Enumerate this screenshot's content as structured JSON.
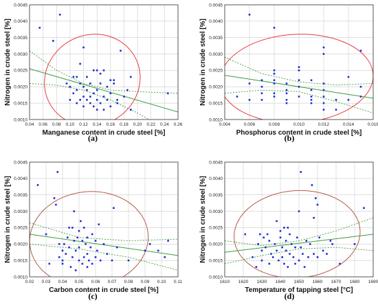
{
  "chart_data": [
    {
      "type": "scatter",
      "panel_label": "(a)",
      "xlabel": "Manganese content in crude steel [%]",
      "ylabel": "Nitrogen in crude steel [%]",
      "xlim": [
        0.04,
        0.26
      ],
      "ylim": [
        0.001,
        0.0045
      ],
      "x_ticks": [
        "0.04",
        "0.06",
        "0.08",
        "0.10",
        "0.12",
        "0.14",
        "0.16",
        "0.18",
        "0.20",
        "0.22",
        "0.24",
        "0.26"
      ],
      "y_ticks": [
        "0.0010",
        "0.0015",
        "0.0020",
        "0.0025",
        "0.0030",
        "0.0035",
        "0.0040",
        "0.0045"
      ],
      "grid": true,
      "ellipse_color": "#e8383d",
      "points": [
        [
          0.055,
          0.0038
        ],
        [
          0.075,
          0.0034
        ],
        [
          0.085,
          0.0042
        ],
        [
          0.095,
          0.0021
        ],
        [
          0.1,
          0.0016
        ],
        [
          0.1,
          0.002
        ],
        [
          0.105,
          0.0018
        ],
        [
          0.105,
          0.0023
        ],
        [
          0.11,
          0.0015
        ],
        [
          0.11,
          0.0019
        ],
        [
          0.11,
          0.0023
        ],
        [
          0.115,
          0.0016
        ],
        [
          0.115,
          0.0021
        ],
        [
          0.115,
          0.0027
        ],
        [
          0.12,
          0.0014
        ],
        [
          0.12,
          0.0017
        ],
        [
          0.12,
          0.002
        ],
        [
          0.12,
          0.0032
        ],
        [
          0.125,
          0.0016
        ],
        [
          0.125,
          0.0019
        ],
        [
          0.125,
          0.0023
        ],
        [
          0.13,
          0.0015
        ],
        [
          0.13,
          0.0017
        ],
        [
          0.13,
          0.0021
        ],
        [
          0.135,
          0.0014
        ],
        [
          0.135,
          0.0018
        ],
        [
          0.135,
          0.0025
        ],
        [
          0.14,
          0.0013
        ],
        [
          0.14,
          0.0016
        ],
        [
          0.14,
          0.0019
        ],
        [
          0.14,
          0.0025
        ],
        [
          0.145,
          0.0015
        ],
        [
          0.145,
          0.0021
        ],
        [
          0.145,
          0.0024
        ],
        [
          0.15,
          0.0013
        ],
        [
          0.15,
          0.0017
        ],
        [
          0.15,
          0.0025
        ],
        [
          0.155,
          0.0016
        ],
        [
          0.155,
          0.002
        ],
        [
          0.16,
          0.0014
        ],
        [
          0.16,
          0.0018
        ],
        [
          0.16,
          0.0022
        ],
        [
          0.165,
          0.0021
        ],
        [
          0.165,
          0.0022
        ],
        [
          0.17,
          0.0015
        ],
        [
          0.17,
          0.0016
        ],
        [
          0.175,
          0.0031
        ],
        [
          0.18,
          0.0017
        ],
        [
          0.185,
          0.0019
        ],
        [
          0.19,
          0.0023
        ],
        [
          0.19,
          0.0013
        ],
        [
          0.245,
          0.0018
        ]
      ],
      "fit_line": [
        [
          0.04,
          0.00255
        ],
        [
          0.26,
          0.00123
        ]
      ],
      "conf_upper": [
        [
          0.04,
          0.0031
        ],
        [
          0.08,
          0.0025
        ],
        [
          0.12,
          0.0021
        ],
        [
          0.16,
          0.0019
        ],
        [
          0.2,
          0.00185
        ],
        [
          0.26,
          0.0018
        ]
      ],
      "conf_lower": [
        [
          0.04,
          0.0021
        ],
        [
          0.08,
          0.00205
        ],
        [
          0.12,
          0.0019
        ],
        [
          0.16,
          0.0016
        ],
        [
          0.2,
          0.0012
        ],
        [
          0.26,
          0.0005
        ]
      ],
      "ellipse": {
        "cx": 0.133,
        "cy": 0.0022,
        "rx": 0.072,
        "ry": 0.00138,
        "angle_deg": -28
      }
    },
    {
      "type": "scatter",
      "panel_label": "(b)",
      "xlabel": "Phosphorus content in crude steel [%]",
      "ylabel": "Nitrogen in crude steel [%]",
      "xlim": [
        0.004,
        0.016
      ],
      "ylim": [
        0.001,
        0.0045
      ],
      "x_ticks": [
        "0.004",
        "0.006",
        "0.008",
        "0.010",
        "0.012",
        "0.014",
        "0.016"
      ],
      "y_ticks": [
        "0.0010",
        "0.0015",
        "0.0020",
        "0.0025",
        "0.0030",
        "0.0035",
        "0.0040",
        "0.0045"
      ],
      "grid": true,
      "ellipse_color": "#e8383d",
      "points": [
        [
          0.005,
          0.0017
        ],
        [
          0.006,
          0.0042
        ],
        [
          0.006,
          0.0016
        ],
        [
          0.006,
          0.0021
        ],
        [
          0.007,
          0.0016
        ],
        [
          0.007,
          0.0018
        ],
        [
          0.007,
          0.002
        ],
        [
          0.007,
          0.0022
        ],
        [
          0.008,
          0.0038
        ],
        [
          0.008,
          0.0025
        ],
        [
          0.008,
          0.0024
        ],
        [
          0.008,
          0.0022
        ],
        [
          0.008,
          0.0021
        ],
        [
          0.008,
          0.0018
        ],
        [
          0.008,
          0.0017
        ],
        [
          0.009,
          0.0021
        ],
        [
          0.009,
          0.0019
        ],
        [
          0.009,
          0.0018
        ],
        [
          0.009,
          0.0016
        ],
        [
          0.009,
          0.0015
        ],
        [
          0.01,
          0.0026
        ],
        [
          0.01,
          0.0025
        ],
        [
          0.01,
          0.0022
        ],
        [
          0.01,
          0.002
        ],
        [
          0.01,
          0.0017
        ],
        [
          0.011,
          0.0022
        ],
        [
          0.011,
          0.0019
        ],
        [
          0.011,
          0.0017
        ],
        [
          0.011,
          0.0016
        ],
        [
          0.011,
          0.0015
        ],
        [
          0.012,
          0.0032
        ],
        [
          0.012,
          0.003
        ],
        [
          0.012,
          0.0021
        ],
        [
          0.012,
          0.0019
        ],
        [
          0.012,
          0.0017
        ],
        [
          0.012,
          0.0015
        ],
        [
          0.012,
          0.0013
        ],
        [
          0.013,
          0.0016
        ],
        [
          0.013,
          0.0013
        ],
        [
          0.014,
          0.0023
        ],
        [
          0.014,
          0.0016
        ],
        [
          0.015,
          0.0031
        ],
        [
          0.015,
          0.002
        ],
        [
          0.015,
          0.0017
        ]
      ],
      "fit_line": [
        [
          0.004,
          0.00235
        ],
        [
          0.016,
          0.00165
        ]
      ],
      "conf_upper": [
        [
          0.004,
          0.0029
        ],
        [
          0.007,
          0.0024
        ],
        [
          0.01,
          0.00215
        ],
        [
          0.013,
          0.00205
        ],
        [
          0.016,
          0.0021
        ]
      ],
      "conf_lower": [
        [
          0.004,
          0.0018
        ],
        [
          0.007,
          0.0019
        ],
        [
          0.01,
          0.00185
        ],
        [
          0.013,
          0.00155
        ],
        [
          0.016,
          0.0012
        ]
      ],
      "ellipse": {
        "cx": 0.0098,
        "cy": 0.00225,
        "rx": 0.0062,
        "ry": 0.00135,
        "angle_deg": -3
      }
    },
    {
      "type": "scatter",
      "panel_label": "(c)",
      "xlabel": "Carbon content in crude steel [%]",
      "ylabel": "Nitrogen in crude steel [%]",
      "xlim": [
        0.02,
        0.11
      ],
      "ylim": [
        0.001,
        0.0045
      ],
      "x_ticks": [
        "0.02",
        "0.03",
        "0.04",
        "0.05",
        "0.06",
        "0.07",
        "0.08",
        "0.09",
        "0.10",
        "0.11"
      ],
      "y_ticks": [
        "0.0010",
        "0.0015",
        "0.0020",
        "0.0025",
        "0.0030",
        "0.0035",
        "0.0040",
        "0.0045"
      ],
      "grid": true,
      "ellipse_color": "#b35a4a",
      "points": [
        [
          0.025,
          0.0038
        ],
        [
          0.03,
          0.0023
        ],
        [
          0.032,
          0.0014
        ],
        [
          0.035,
          0.0034
        ],
        [
          0.036,
          0.0032
        ],
        [
          0.037,
          0.0042
        ],
        [
          0.038,
          0.002
        ],
        [
          0.038,
          0.0016
        ],
        [
          0.04,
          0.0018
        ],
        [
          0.04,
          0.0015
        ],
        [
          0.04,
          0.0014
        ],
        [
          0.041,
          0.002
        ],
        [
          0.042,
          0.0017
        ],
        [
          0.043,
          0.0022
        ],
        [
          0.044,
          0.0019
        ],
        [
          0.044,
          0.0025
        ],
        [
          0.045,
          0.0013
        ],
        [
          0.046,
          0.0016
        ],
        [
          0.046,
          0.0025
        ],
        [
          0.047,
          0.0021
        ],
        [
          0.047,
          0.003
        ],
        [
          0.048,
          0.0018
        ],
        [
          0.048,
          0.0012
        ],
        [
          0.049,
          0.0022
        ],
        [
          0.05,
          0.0015
        ],
        [
          0.05,
          0.0019
        ],
        [
          0.05,
          0.0024
        ],
        [
          0.051,
          0.0027
        ],
        [
          0.052,
          0.0014
        ],
        [
          0.052,
          0.0021
        ],
        [
          0.053,
          0.0016
        ],
        [
          0.053,
          0.0025
        ],
        [
          0.054,
          0.002
        ],
        [
          0.055,
          0.0013
        ],
        [
          0.055,
          0.0017
        ],
        [
          0.055,
          0.0022
        ],
        [
          0.056,
          0.0015
        ],
        [
          0.057,
          0.0019
        ],
        [
          0.058,
          0.0014
        ],
        [
          0.058,
          0.0023
        ],
        [
          0.06,
          0.0016
        ],
        [
          0.06,
          0.0021
        ],
        [
          0.061,
          0.0018
        ],
        [
          0.062,
          0.0026
        ],
        [
          0.063,
          0.0015
        ],
        [
          0.065,
          0.002
        ],
        [
          0.067,
          0.0017
        ],
        [
          0.07,
          0.0015
        ],
        [
          0.071,
          0.0031
        ],
        [
          0.073,
          0.0019
        ],
        [
          0.08,
          0.0015
        ],
        [
          0.09,
          0.0018
        ],
        [
          0.093,
          0.002
        ],
        [
          0.098,
          0.0018
        ],
        [
          0.104,
          0.0021
        ],
        [
          0.102,
          0.0016
        ]
      ],
      "fit_line": [
        [
          0.02,
          0.0023
        ],
        [
          0.11,
          0.00165
        ]
      ],
      "conf_upper": [
        [
          0.02,
          0.00265
        ],
        [
          0.05,
          0.0022
        ],
        [
          0.08,
          0.0021
        ],
        [
          0.11,
          0.00215
        ]
      ],
      "conf_lower": [
        [
          0.02,
          0.002
        ],
        [
          0.05,
          0.00185
        ],
        [
          0.08,
          0.0016
        ],
        [
          0.11,
          0.0012
        ]
      ],
      "ellipse": {
        "cx": 0.056,
        "cy": 0.00215,
        "rx": 0.036,
        "ry": 0.00145,
        "angle_deg": -6
      }
    },
    {
      "type": "scatter",
      "panel_label": "(d)",
      "xlabel": "Temperature of tapping steel [°C]",
      "ylabel": "Nitrogen in crude steel [%]",
      "xlim": [
        1610,
        1690
      ],
      "ylim": [
        0.001,
        0.0045
      ],
      "x_ticks": [
        "1610",
        "1620",
        "1630",
        "1640",
        "1650",
        "1660",
        "1670",
        "1680",
        "1690"
      ],
      "y_ticks": [
        "0.0010",
        "0.0015",
        "0.0020",
        "0.0025",
        "0.0030",
        "0.0035",
        "0.0040",
        "0.0045"
      ],
      "grid": true,
      "ellipse_color": "#b35a4a",
      "points": [
        [
          1621,
          0.0023
        ],
        [
          1625,
          0.0016
        ],
        [
          1627,
          0.0013
        ],
        [
          1628,
          0.002
        ],
        [
          1629,
          0.0023
        ],
        [
          1630,
          0.0018
        ],
        [
          1630,
          0.0015
        ],
        [
          1631,
          0.0022
        ],
        [
          1632,
          0.0019
        ],
        [
          1633,
          0.0023
        ],
        [
          1634,
          0.0014
        ],
        [
          1634,
          0.0021
        ],
        [
          1635,
          0.0017
        ],
        [
          1636,
          0.0016
        ],
        [
          1637,
          0.002
        ],
        [
          1638,
          0.0027
        ],
        [
          1638,
          0.0018
        ],
        [
          1639,
          0.0015
        ],
        [
          1640,
          0.0024
        ],
        [
          1640,
          0.0022
        ],
        [
          1641,
          0.0019
        ],
        [
          1641,
          0.0016
        ],
        [
          1642,
          0.0025
        ],
        [
          1642,
          0.0014
        ],
        [
          1643,
          0.0021
        ],
        [
          1643,
          0.0018
        ],
        [
          1644,
          0.0025
        ],
        [
          1644,
          0.0013
        ],
        [
          1645,
          0.0023
        ],
        [
          1645,
          0.0017
        ],
        [
          1646,
          0.002
        ],
        [
          1647,
          0.0016
        ],
        [
          1648,
          0.0019
        ],
        [
          1648,
          0.0014
        ],
        [
          1649,
          0.0022
        ],
        [
          1650,
          0.003
        ],
        [
          1650,
          0.0015
        ],
        [
          1651,
          0.0019
        ],
        [
          1651,
          0.0042
        ],
        [
          1652,
          0.0017
        ],
        [
          1653,
          0.0013
        ],
        [
          1654,
          0.0021
        ],
        [
          1655,
          0.0016
        ],
        [
          1656,
          0.002
        ],
        [
          1657,
          0.0038
        ],
        [
          1658,
          0.0028
        ],
        [
          1658,
          0.0017
        ],
        [
          1659,
          0.0034
        ],
        [
          1660,
          0.0032
        ],
        [
          1660,
          0.0016
        ],
        [
          1661,
          0.0022
        ],
        [
          1663,
          0.0018
        ],
        [
          1665,
          0.0017
        ],
        [
          1667,
          0.0021
        ],
        [
          1668,
          0.002
        ],
        [
          1672,
          0.0014
        ],
        [
          1680,
          0.002
        ],
        [
          1685,
          0.0031
        ]
      ],
      "fit_line": [
        [
          1610,
          0.00175
        ],
        [
          1690,
          0.0023
        ]
      ],
      "conf_upper": [
        [
          1610,
          0.0021
        ],
        [
          1630,
          0.00195
        ],
        [
          1650,
          0.0021
        ],
        [
          1670,
          0.0024
        ],
        [
          1690,
          0.0028
        ]
      ],
      "conf_lower": [
        [
          1610,
          0.0014
        ],
        [
          1630,
          0.00165
        ],
        [
          1650,
          0.00185
        ],
        [
          1670,
          0.0019
        ],
        [
          1690,
          0.0018
        ]
      ],
      "ellipse": {
        "cx": 1649,
        "cy": 0.0023,
        "rx": 34,
        "ry": 0.00133,
        "angle_deg": -4
      }
    }
  ],
  "colors": {
    "points": "#1f2bd6",
    "fit_line": "#3a9c3a",
    "grid": "#cccccc"
  }
}
